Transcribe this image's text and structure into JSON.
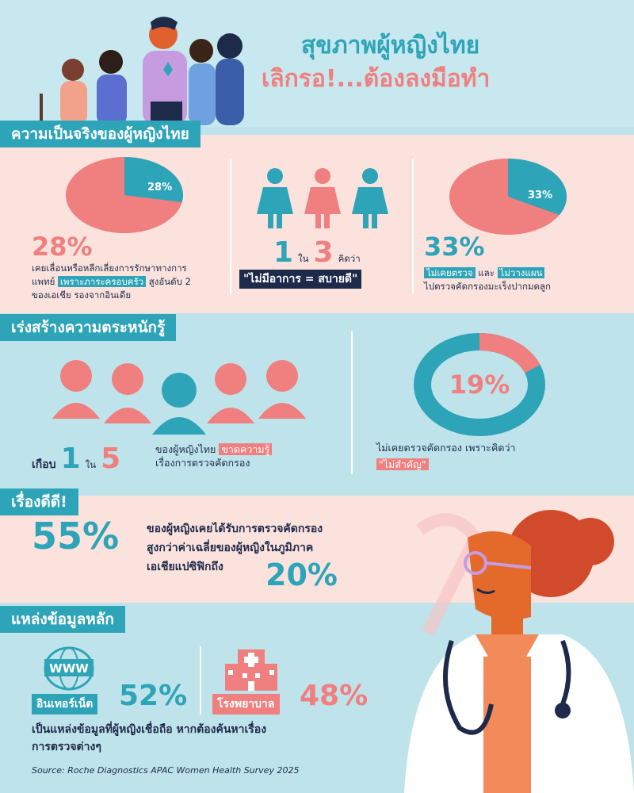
{
  "header": {
    "title_line1": "สุขภาพผู้หญิงไทย",
    "title_line2": "เลิกรอ!...ต้องลงมือทำ"
  },
  "section1": {
    "title": "ความเป็นจริงของผู้หญิงไทย",
    "stat_left": {
      "pie_value": 28,
      "pie_label": "28%",
      "big_value": "28%",
      "text_prefix": "เคยเลื่อนหรือหลีกเลี่ยงการรักษาทางการ",
      "text_line2_a": "แพทย์",
      "text_highlight": "เพราะภาระครอบครัว",
      "text_line2_b": "สูงอันดับ 2",
      "text_line3": "ของเอเชีย รองจากอินเดีย"
    },
    "stat_mid": {
      "num_a": "1",
      "word_in": "ใน",
      "num_b": "3",
      "word_think": "คิดว่า",
      "quote": "\"ไม่มีอาการ = สบายดี\""
    },
    "stat_right": {
      "pie_value": 33,
      "pie_label": "33%",
      "big_value": "33%",
      "highlight_a": "ไม่เคยตรวจ",
      "word_and": "และ",
      "highlight_b": "ไม่วางแผน",
      "text_line2": "ไปตรวจคัดกรองมะเร็งปากมดลูก"
    }
  },
  "section2": {
    "title": "เร่งสร้างความตระหนักรู้",
    "left": {
      "word_almost": "เกือบ",
      "num_a": "1",
      "word_in": "ใน",
      "num_b": "5",
      "text_a": "ของผู้หญิงไทย",
      "highlight": "ขาดความรู้",
      "text_line2": "เรื่องการตรวจคัดกรอง"
    },
    "right": {
      "donut_value": 19,
      "donut_label": "19%",
      "text_line1": "ไม่เคยตรวจคัดกรอง เพราะคิดว่า",
      "highlight": "\"ไม่สำคัญ\""
    }
  },
  "section3": {
    "title": "เรื่องดีดี!",
    "big_value": "55%",
    "text_line1": "ของผู้หญิงเคยได้รับการตรวจคัดกรอง",
    "text_line2": "สูงกว่าค่าเฉลี่ยของผู้หญิงในภูมิภาค",
    "text_line3": "เอเชียแปซิฟิกถึง",
    "big_value2": "20%"
  },
  "section4": {
    "title": "แหล่งข้อมูลหลัก",
    "www_label": "WWW",
    "internet_label": "อินเทอร์เน็ต",
    "internet_value": "52%",
    "hospital_label": "โรงพยาบาล",
    "hospital_value": "48%",
    "text_line1": "เป็นแหล่งข้อมูลที่ผู้หญิงเชื่อถือ หากต้องค้นหาเรื่อง",
    "text_line2": "การตรวจต่างๆ",
    "source": "Source: Roche Diagnostics APAC Women Health Survey 2025"
  },
  "colors": {
    "teal": "#2ea4b8",
    "coral": "#f07f7f",
    "pink_bg": "#fbe2dc",
    "blue_bg": "#bfe3ea",
    "navy": "#1e2a4a"
  }
}
